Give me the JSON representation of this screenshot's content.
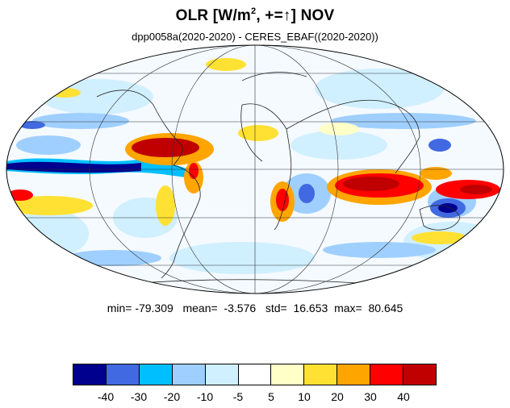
{
  "title": {
    "prefix": "OLR [W/m",
    "sup": "2",
    "middle": ", +=",
    "arrow": "↑",
    "suffix": "] NOV"
  },
  "subtitle": "dpp0058a(2020-2020) - CERES_EBAF((2020-2020))",
  "stats": {
    "min_label": "min=",
    "min": "-79.309",
    "mean_label": "mean=",
    "mean": "-3.576",
    "std_label": "std=",
    "std": "16.653",
    "max_label": "max=",
    "max": "80.645"
  },
  "colorbar": {
    "colors": [
      "#00008f",
      "#4169e1",
      "#00bfff",
      "#9fcfff",
      "#d0efff",
      "#ffffff",
      "#ffffc8",
      "#ffe133",
      "#ffa500",
      "#ff0000",
      "#c00000"
    ],
    "labels": [
      "-40",
      "-30",
      "-20",
      "-10",
      "-5",
      "5",
      "10",
      "20",
      "30",
      "40"
    ]
  },
  "map": {
    "projection": "mollweide",
    "grid": true
  }
}
